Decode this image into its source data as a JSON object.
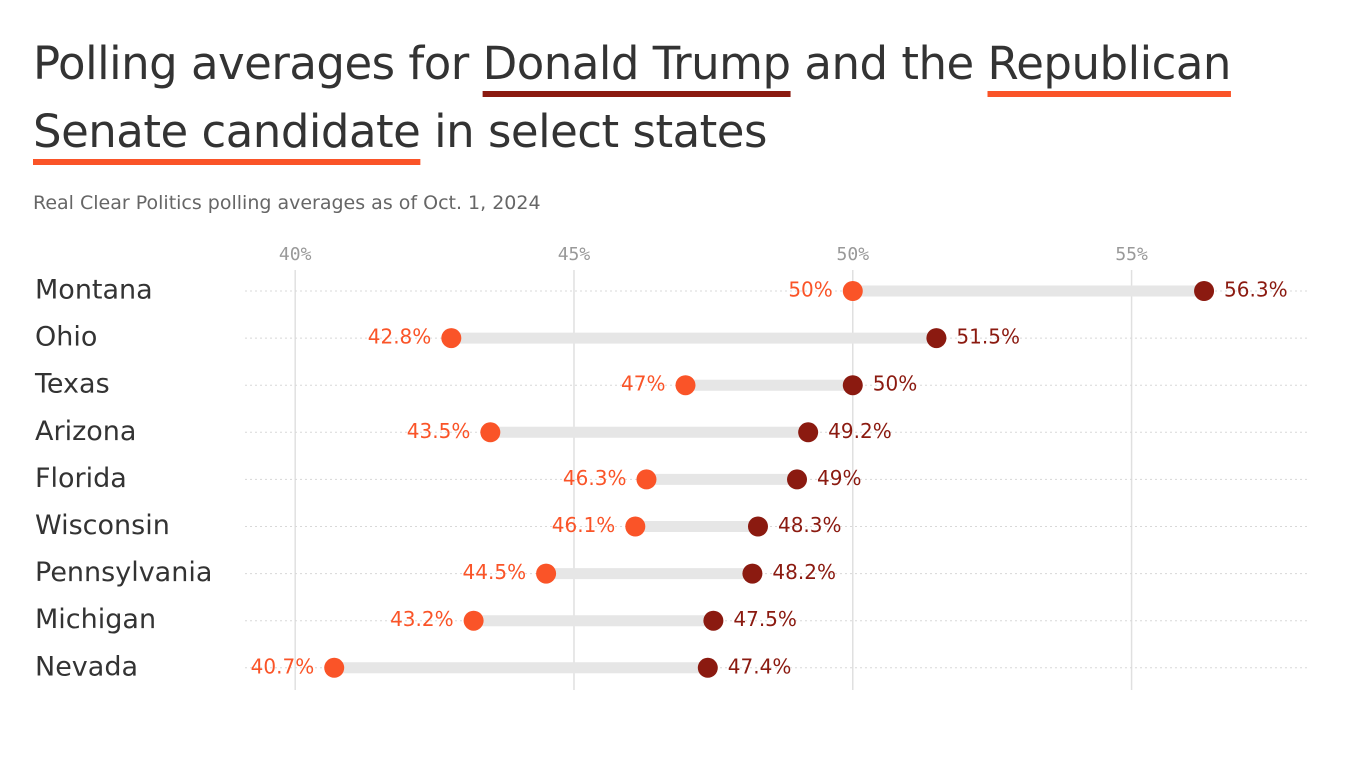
{
  "chart_data": {
    "type": "dumbbell",
    "title_parts": [
      "Polling averages for ",
      " and the ",
      " in select states"
    ],
    "subtitle": "Real Clear Politics polling averages as of Oct. 1, 2024",
    "categories": [
      "Montana",
      "Ohio",
      "Texas",
      "Arizona",
      "Florida",
      "Wisconsin",
      "Pennsylvania",
      "Michigan",
      "Nevada"
    ],
    "series": [
      {
        "name": "Donald Trump",
        "color": "#8b1a10",
        "values": [
          56.3,
          51.5,
          50,
          49.2,
          49,
          48.3,
          48.2,
          47.5,
          47.4
        ],
        "value_labels": [
          "56.3%",
          "51.5%",
          "50%",
          "49.2%",
          "49%",
          "48.3%",
          "48.2%",
          "47.5%",
          "47.4%"
        ]
      },
      {
        "name": "Republican Senate candidate",
        "color": "#fa5428",
        "values": [
          50,
          42.8,
          47,
          43.5,
          46.3,
          46.1,
          44.5,
          43.2,
          40.7
        ],
        "value_labels": [
          "50%",
          "42.8%",
          "47%",
          "43.5%",
          "46.3%",
          "46.1%",
          "44.5%",
          "43.2%",
          "40.7%"
        ]
      }
    ],
    "xlim": [
      39.1,
      58.2
    ],
    "xticks": [
      {
        "value": 40,
        "label": "40%"
      },
      {
        "value": 45,
        "label": "45%"
      },
      {
        "value": 50,
        "label": "50%"
      },
      {
        "value": 55,
        "label": "55%"
      }
    ],
    "grid": true
  }
}
